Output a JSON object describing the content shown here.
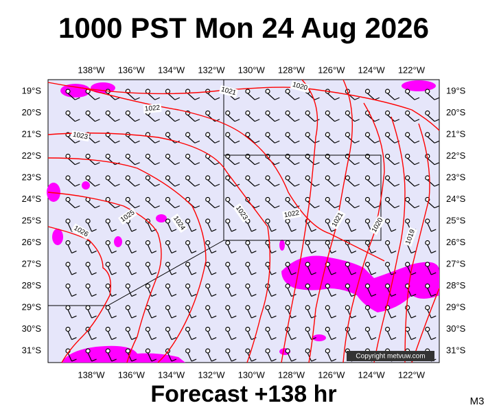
{
  "header": {
    "title": "1000 PST Mon 24 Aug 2026"
  },
  "map": {
    "longitude_labels": [
      "138°W",
      "136°W",
      "134°W",
      "132°W",
      "130°W",
      "128°W",
      "126°W",
      "124°W",
      "122°W"
    ],
    "latitude_labels": [
      "19°S",
      "20°S",
      "21°S",
      "22°S",
      "23°S",
      "24°S",
      "25°S",
      "26°S",
      "27°S",
      "28°S",
      "29°S",
      "30°S",
      "31°S"
    ],
    "contour_labels": [
      "1021",
      "1020",
      "1022",
      "1023",
      "1025",
      "1024",
      "1023",
      "1022",
      "1021",
      "1020",
      "1019",
      "1026"
    ],
    "copyright": "Copyright metvuw.com"
  },
  "footer": {
    "forecast": "Forecast +138 hr",
    "model": "M3"
  }
}
